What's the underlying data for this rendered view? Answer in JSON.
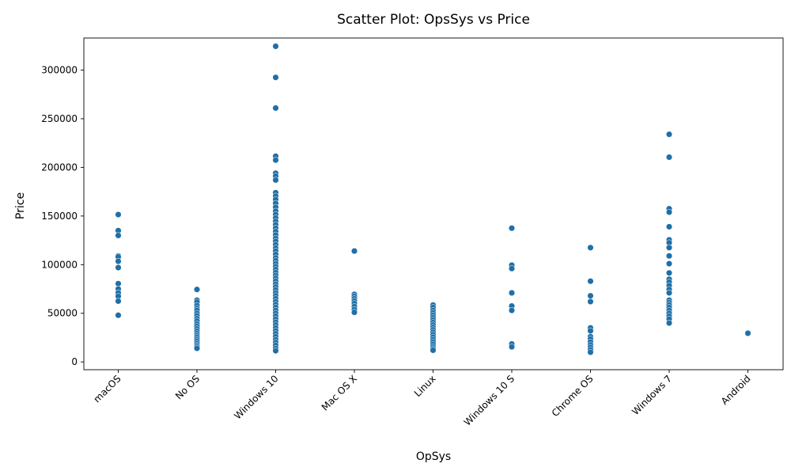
{
  "chart_data": {
    "type": "scatter",
    "title": "Scatter Plot: OpsSys vs Price",
    "xlabel": "OpSys",
    "ylabel": "Price",
    "categories": [
      "macOS",
      "No OS",
      "Windows 10",
      "Mac OS X",
      "Linux",
      "Windows 10 S",
      "Chrome OS",
      "Windows 7",
      "Android"
    ],
    "yticks": [
      0,
      50000,
      100000,
      150000,
      200000,
      250000,
      300000
    ],
    "ytick_labels": [
      "0",
      "50000",
      "100000",
      "150000",
      "200000",
      "250000",
      "300000"
    ],
    "ylim": [
      -8000,
      333000
    ],
    "grid": false,
    "legend": "none",
    "marker_color": "#1f6fa8",
    "series": [
      {
        "points": [
          [
            "macOS",
            151500
          ],
          [
            "macOS",
            135000
          ],
          [
            "macOS",
            130000
          ],
          [
            "macOS",
            109000
          ],
          [
            "macOS",
            108000
          ],
          [
            "macOS",
            103500
          ],
          [
            "macOS",
            97000
          ],
          [
            "macOS",
            80500
          ],
          [
            "macOS",
            75000
          ],
          [
            "macOS",
            71000
          ],
          [
            "macOS",
            67500
          ],
          [
            "macOS",
            62500
          ],
          [
            "macOS",
            48000
          ],
          [
            "No OS",
            74500
          ],
          [
            "No OS",
            63500
          ],
          [
            "No OS",
            61500
          ],
          [
            "No OS",
            58000
          ],
          [
            "No OS",
            55000
          ],
          [
            "No OS",
            53000
          ],
          [
            "No OS",
            50000
          ],
          [
            "No OS",
            47500
          ],
          [
            "No OS",
            44500
          ],
          [
            "No OS",
            42000
          ],
          [
            "No OS",
            39000
          ],
          [
            "No OS",
            36500
          ],
          [
            "No OS",
            34000
          ],
          [
            "No OS",
            31500
          ],
          [
            "No OS",
            29000
          ],
          [
            "No OS",
            27000
          ],
          [
            "No OS",
            25000
          ],
          [
            "No OS",
            23000
          ],
          [
            "No OS",
            21000
          ],
          [
            "No OS",
            19000
          ],
          [
            "No OS",
            17000
          ],
          [
            "No OS",
            15500
          ],
          [
            "No OS",
            14000
          ],
          [
            "Windows 10",
            324500
          ],
          [
            "Windows 10",
            292500
          ],
          [
            "Windows 10",
            261000
          ],
          [
            "Windows 10",
            211500
          ],
          [
            "Windows 10",
            207500
          ],
          [
            "Windows 10",
            194000
          ],
          [
            "Windows 10",
            191000
          ],
          [
            "Windows 10",
            187000
          ],
          [
            "Windows 10",
            174000
          ],
          [
            "Windows 10",
            170500
          ],
          [
            "Windows 10",
            167000
          ],
          [
            "Windows 10",
            163000
          ],
          [
            "Windows 10",
            159000
          ],
          [
            "Windows 10",
            155000
          ],
          [
            "Windows 10",
            151500
          ],
          [
            "Windows 10",
            148000
          ],
          [
            "Windows 10",
            144500
          ],
          [
            "Windows 10",
            141000
          ],
          [
            "Windows 10",
            137500
          ],
          [
            "Windows 10",
            134000
          ],
          [
            "Windows 10",
            130500
          ],
          [
            "Windows 10",
            127000
          ],
          [
            "Windows 10",
            124000
          ],
          [
            "Windows 10",
            120500
          ],
          [
            "Windows 10",
            117000
          ],
          [
            "Windows 10",
            114000
          ],
          [
            "Windows 10",
            110500
          ],
          [
            "Windows 10",
            107000
          ],
          [
            "Windows 10",
            104000
          ],
          [
            "Windows 10",
            101000
          ],
          [
            "Windows 10",
            98000
          ],
          [
            "Windows 10",
            95000
          ],
          [
            "Windows 10",
            92000
          ],
          [
            "Windows 10",
            89000
          ],
          [
            "Windows 10",
            86000
          ],
          [
            "Windows 10",
            83000
          ],
          [
            "Windows 10",
            80000
          ],
          [
            "Windows 10",
            77000
          ],
          [
            "Windows 10",
            74000
          ],
          [
            "Windows 10",
            71000
          ],
          [
            "Windows 10",
            68000
          ],
          [
            "Windows 10",
            65000
          ],
          [
            "Windows 10",
            62000
          ],
          [
            "Windows 10",
            59000
          ],
          [
            "Windows 10",
            56000
          ],
          [
            "Windows 10",
            53000
          ],
          [
            "Windows 10",
            50000
          ],
          [
            "Windows 10",
            47000
          ],
          [
            "Windows 10",
            44000
          ],
          [
            "Windows 10",
            41000
          ],
          [
            "Windows 10",
            38000
          ],
          [
            "Windows 10",
            35000
          ],
          [
            "Windows 10",
            32000
          ],
          [
            "Windows 10",
            29000
          ],
          [
            "Windows 10",
            26000
          ],
          [
            "Windows 10",
            23000
          ],
          [
            "Windows 10",
            20000
          ],
          [
            "Windows 10",
            17000
          ],
          [
            "Windows 10",
            14000
          ],
          [
            "Windows 10",
            11500
          ],
          [
            "Mac OS X",
            114000
          ],
          [
            "Mac OS X",
            69500
          ],
          [
            "Mac OS X",
            67500
          ],
          [
            "Mac OS X",
            65000
          ],
          [
            "Mac OS X",
            62500
          ],
          [
            "Mac OS X",
            60000
          ],
          [
            "Mac OS X",
            57000
          ],
          [
            "Mac OS X",
            54000
          ],
          [
            "Mac OS X",
            51000
          ],
          [
            "Linux",
            58500
          ],
          [
            "Linux",
            56000
          ],
          [
            "Linux",
            53000
          ],
          [
            "Linux",
            50500
          ],
          [
            "Linux",
            48000
          ],
          [
            "Linux",
            45500
          ],
          [
            "Linux",
            43000
          ],
          [
            "Linux",
            40500
          ],
          [
            "Linux",
            38000
          ],
          [
            "Linux",
            35500
          ],
          [
            "Linux",
            33000
          ],
          [
            "Linux",
            30500
          ],
          [
            "Linux",
            28000
          ],
          [
            "Linux",
            25500
          ],
          [
            "Linux",
            23000
          ],
          [
            "Linux",
            20500
          ],
          [
            "Linux",
            18000
          ],
          [
            "Linux",
            15500
          ],
          [
            "Linux",
            13500
          ],
          [
            "Linux",
            12000
          ],
          [
            "Windows 10 S",
            137500
          ],
          [
            "Windows 10 S",
            99500
          ],
          [
            "Windows 10 S",
            96000
          ],
          [
            "Windows 10 S",
            71000
          ],
          [
            "Windows 10 S",
            57500
          ],
          [
            "Windows 10 S",
            53000
          ],
          [
            "Windows 10 S",
            18500
          ],
          [
            "Windows 10 S",
            15500
          ],
          [
            "Chrome OS",
            117500
          ],
          [
            "Chrome OS",
            83000
          ],
          [
            "Chrome OS",
            68000
          ],
          [
            "Chrome OS",
            62000
          ],
          [
            "Chrome OS",
            35000
          ],
          [
            "Chrome OS",
            32000
          ],
          [
            "Chrome OS",
            26000
          ],
          [
            "Chrome OS",
            23500
          ],
          [
            "Chrome OS",
            20500
          ],
          [
            "Chrome OS",
            17500
          ],
          [
            "Chrome OS",
            15000
          ],
          [
            "Chrome OS",
            12500
          ],
          [
            "Chrome OS",
            10000
          ],
          [
            "Windows 7",
            234000
          ],
          [
            "Windows 7",
            210500
          ],
          [
            "Windows 7",
            157500
          ],
          [
            "Windows 7",
            154000
          ],
          [
            "Windows 7",
            139000
          ],
          [
            "Windows 7",
            125500
          ],
          [
            "Windows 7",
            122500
          ],
          [
            "Windows 7",
            117500
          ],
          [
            "Windows 7",
            109000
          ],
          [
            "Windows 7",
            101000
          ],
          [
            "Windows 7",
            91500
          ],
          [
            "Windows 7",
            85000
          ],
          [
            "Windows 7",
            82000
          ],
          [
            "Windows 7",
            78500
          ],
          [
            "Windows 7",
            74500
          ],
          [
            "Windows 7",
            71000
          ],
          [
            "Windows 7",
            63500
          ],
          [
            "Windows 7",
            61000
          ],
          [
            "Windows 7",
            58500
          ],
          [
            "Windows 7",
            56000
          ],
          [
            "Windows 7",
            53000
          ],
          [
            "Windows 7",
            50000
          ],
          [
            "Windows 7",
            47000
          ],
          [
            "Windows 7",
            44000
          ],
          [
            "Windows 7",
            40000
          ],
          [
            "Android",
            29500
          ]
        ]
      }
    ]
  }
}
